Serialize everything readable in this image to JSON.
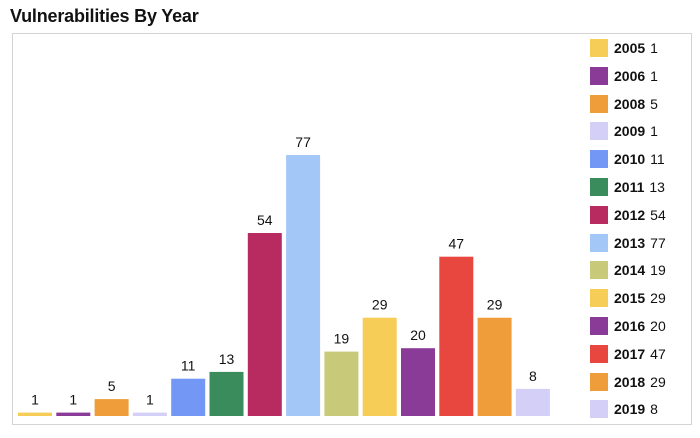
{
  "title": "Vulnerabilities By Year",
  "chart_data": {
    "type": "bar",
    "title": "Vulnerabilities By Year",
    "xlabel": "",
    "ylabel": "",
    "ylim": [
      0,
      77
    ],
    "grid": false,
    "legend_position": "right",
    "categories": [
      "2005",
      "2006",
      "2008",
      "2009",
      "2010",
      "2011",
      "2012",
      "2013",
      "2014",
      "2015",
      "2016",
      "2017",
      "2018",
      "2019"
    ],
    "values": [
      1,
      1,
      5,
      1,
      11,
      13,
      54,
      77,
      19,
      29,
      20,
      47,
      29,
      8
    ],
    "colors": [
      "#f5cd57",
      "#8a3b98",
      "#ef9d3a",
      "#d3cff7",
      "#7297f5",
      "#3b8c5c",
      "#b72b61",
      "#a3c8f8",
      "#c9c97a",
      "#f5cd57",
      "#8a3b98",
      "#e8473f",
      "#ef9d3a",
      "#d3cff7"
    ]
  }
}
